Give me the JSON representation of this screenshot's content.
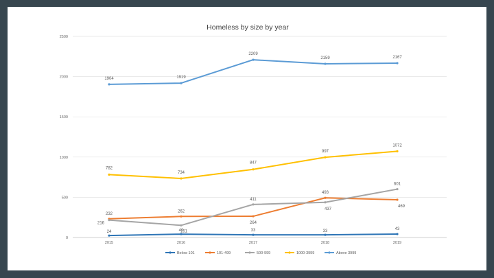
{
  "chart_data": {
    "type": "line",
    "title": "Homeless by size by year",
    "xlabel": "",
    "ylabel": "",
    "ylim": [
      0,
      2500
    ],
    "yticks": [
      0,
      500,
      1000,
      1500,
      2000,
      2500
    ],
    "categories": [
      "2015",
      "2016",
      "2017",
      "2018",
      "2019"
    ],
    "legend_position": "bottom",
    "series": [
      {
        "name": "Below 101",
        "color": "#2e75b6",
        "values": [
          24,
          42,
          33,
          33,
          43
        ]
      },
      {
        "name": "101-499",
        "color": "#ed7d31",
        "values": [
          232,
          262,
          264,
          493,
          469
        ]
      },
      {
        "name": "500-999",
        "color": "#a5a5a5",
        "values": [
          216,
          151,
          411,
          437,
          601
        ]
      },
      {
        "name": "1000-3999",
        "color": "#ffc000",
        "values": [
          782,
          734,
          847,
          997,
          1072
        ]
      },
      {
        "name": "Above 3999",
        "color": "#5b9bd5",
        "values": [
          1904,
          1919,
          2209,
          2159,
          2167
        ]
      }
    ]
  }
}
